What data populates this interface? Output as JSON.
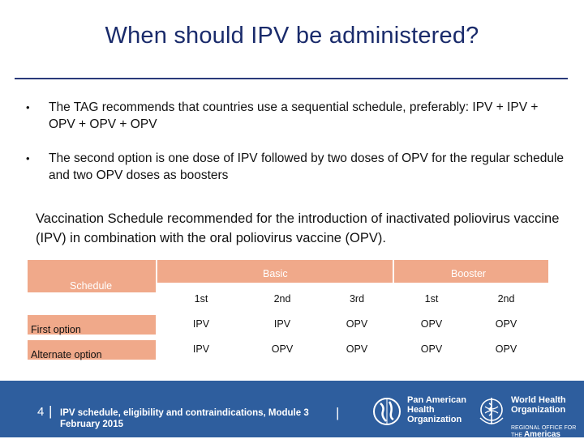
{
  "slide": {
    "title": "When should IPV be administered?",
    "bullets": [
      "The TAG recommends that countries use a sequential schedule, preferably: IPV + IPV + OPV + OPV + OPV",
      "The second option is one dose of IPV followed by two doses of OPV for the regular schedule and two OPV doses as boosters"
    ],
    "bullet_symbol": "•",
    "table_caption": "Vaccination Schedule recommended for the introduction of inactivated poliovirus vaccine (IPV) in combination with the oral poliovirus vaccine (OPV)."
  },
  "table": {
    "schedule_label": "Schedule",
    "group_headers": [
      "Basic",
      "Booster"
    ],
    "dose_headers": [
      "1st",
      "2nd",
      "3rd",
      "1st",
      "2nd"
    ],
    "rows": [
      {
        "label": "First option",
        "values": [
          "IPV",
          "IPV",
          "OPV",
          "OPV",
          "OPV"
        ]
      },
      {
        "label": "Alternate option",
        "values": [
          "IPV",
          "OPV",
          "OPV",
          "OPV",
          "OPV"
        ]
      }
    ],
    "header_color": "#f0a98a"
  },
  "footer": {
    "page_number": "4",
    "separator": "|",
    "text": "IPV schedule, eligibility and contraindications, Module 3",
    "date": "February 2015",
    "background_color": "#2e5e9e",
    "logos": [
      {
        "icon": "paho-emblem-icon",
        "lines": [
          "Pan American",
          "Health",
          "Organization"
        ]
      },
      {
        "icon": "who-emblem-icon",
        "lines": [
          "World Health",
          "Organization"
        ],
        "subtitle": "REGIONAL OFFICE FOR THE",
        "region": "Americas"
      }
    ]
  }
}
